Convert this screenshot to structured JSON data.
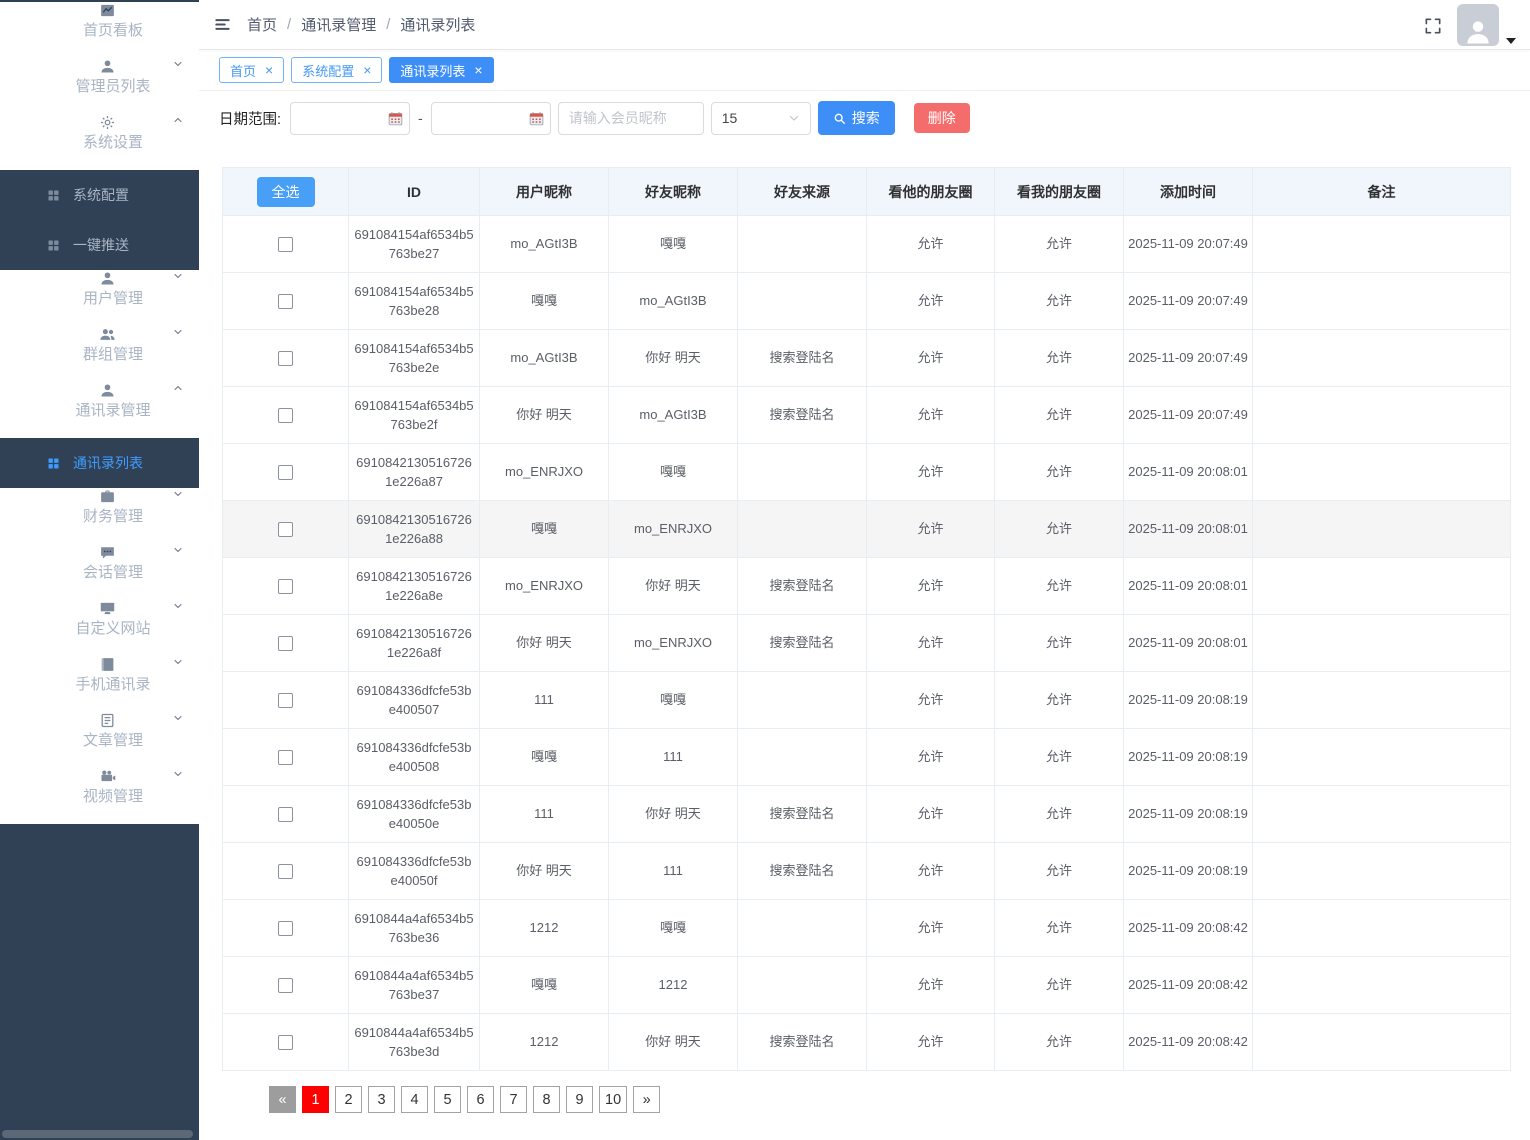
{
  "sidebar": {
    "items": [
      {
        "key": "dashboard",
        "label": "首页看板",
        "icon": "dashboard-icon",
        "type": "main"
      },
      {
        "key": "admin-list",
        "label": "管理员列表",
        "icon": "user-icon",
        "type": "main",
        "chevron": "down"
      },
      {
        "key": "system-settings",
        "label": "系统设置",
        "icon": "gear-icon",
        "type": "main",
        "chevron": "up"
      },
      {
        "key": "system-config",
        "label": "系统配置",
        "icon": "grid-icon",
        "type": "sub"
      },
      {
        "key": "one-key-push",
        "label": "一键推送",
        "icon": "grid-icon",
        "type": "sub"
      },
      {
        "key": "user-mgmt",
        "label": "用户管理",
        "icon": "user-icon",
        "type": "main",
        "chevron": "down"
      },
      {
        "key": "group-mgmt",
        "label": "群组管理",
        "icon": "users-icon",
        "type": "main",
        "chevron": "down"
      },
      {
        "key": "contacts-mgmt",
        "label": "通讯录管理",
        "icon": "user-icon",
        "type": "main",
        "chevron": "up"
      },
      {
        "key": "contacts-list",
        "label": "通讯录列表",
        "icon": "grid-icon",
        "type": "sub",
        "active": true
      },
      {
        "key": "finance-mgmt",
        "label": "财务管理",
        "icon": "briefcase-icon",
        "type": "main",
        "chevron": "down"
      },
      {
        "key": "session-mgmt",
        "label": "会话管理",
        "icon": "chat-icon",
        "type": "main",
        "chevron": "down"
      },
      {
        "key": "custom-website",
        "label": "自定义网站",
        "icon": "monitor-icon",
        "type": "main",
        "chevron": "down"
      },
      {
        "key": "phone-contacts",
        "label": "手机通讯录",
        "icon": "phonebook-icon",
        "type": "main",
        "chevron": "down"
      },
      {
        "key": "article-mgmt",
        "label": "文章管理",
        "icon": "article-icon",
        "type": "main",
        "chevron": "down"
      },
      {
        "key": "video-mgmt",
        "label": "视频管理",
        "icon": "video-icon",
        "type": "main",
        "chevron": "down"
      }
    ]
  },
  "header": {
    "breadcrumb": [
      "首页",
      "通讯录管理",
      "通讯录列表"
    ],
    "separator": "/"
  },
  "tabs": [
    {
      "key": "home",
      "label": "首页",
      "close": "×",
      "active": false
    },
    {
      "key": "system-config",
      "label": "系统配置",
      "close": "×",
      "active": false
    },
    {
      "key": "contacts-list",
      "label": "通讯录列表",
      "close": "×",
      "active": true
    }
  ],
  "filters": {
    "date_range_label": "日期范围:",
    "date_from": "",
    "date_to": "",
    "separator": "-",
    "nickname_placeholder": "请输入会员昵称",
    "page_size": "15",
    "search_label": "搜索",
    "delete_label": "删除"
  },
  "table": {
    "select_all_label": "全选",
    "columns": [
      "ID",
      "用户昵称",
      "好友昵称",
      "好友来源",
      "看他的朋友圈",
      "看我的朋友圈",
      "添加时间",
      "备注"
    ],
    "rows": [
      {
        "id": "691084154af6534b5763be27",
        "user": "mo_AGtI3B",
        "friend": "嘎嘎",
        "source": "",
        "his": "允许",
        "mine": "允许",
        "time": "2025-11-09 20:07:49",
        "note": ""
      },
      {
        "id": "691084154af6534b5763be28",
        "user": "嘎嘎",
        "friend": "mo_AGtI3B",
        "source": "",
        "his": "允许",
        "mine": "允许",
        "time": "2025-11-09 20:07:49",
        "note": ""
      },
      {
        "id": "691084154af6534b5763be2e",
        "user": "mo_AGtI3B",
        "friend": "你好 明天",
        "source": "搜索登陆名",
        "his": "允许",
        "mine": "允许",
        "time": "2025-11-09 20:07:49",
        "note": ""
      },
      {
        "id": "691084154af6534b5763be2f",
        "user": "你好 明天",
        "friend": "mo_AGtI3B",
        "source": "搜索登陆名",
        "his": "允许",
        "mine": "允许",
        "time": "2025-11-09 20:07:49",
        "note": ""
      },
      {
        "id": "69108421305167261e226a87",
        "user": "mo_ENRJXO",
        "friend": "嘎嘎",
        "source": "",
        "his": "允许",
        "mine": "允许",
        "time": "2025-11-09 20:08:01",
        "note": ""
      },
      {
        "id": "69108421305167261e226a88",
        "user": "嘎嘎",
        "friend": "mo_ENRJXO",
        "source": "",
        "his": "允许",
        "mine": "允许",
        "time": "2025-11-09 20:08:01",
        "note": "",
        "highlight": true
      },
      {
        "id": "69108421305167261e226a8e",
        "user": "mo_ENRJXO",
        "friend": "你好 明天",
        "source": "搜索登陆名",
        "his": "允许",
        "mine": "允许",
        "time": "2025-11-09 20:08:01",
        "note": ""
      },
      {
        "id": "69108421305167261e226a8f",
        "user": "你好 明天",
        "friend": "mo_ENRJXO",
        "source": "搜索登陆名",
        "his": "允许",
        "mine": "允许",
        "time": "2025-11-09 20:08:01",
        "note": ""
      },
      {
        "id": "691084336dfcfe53be400507",
        "user": "111",
        "friend": "嘎嘎",
        "source": "",
        "his": "允许",
        "mine": "允许",
        "time": "2025-11-09 20:08:19",
        "note": ""
      },
      {
        "id": "691084336dfcfe53be400508",
        "user": "嘎嘎",
        "friend": "111",
        "source": "",
        "his": "允许",
        "mine": "允许",
        "time": "2025-11-09 20:08:19",
        "note": ""
      },
      {
        "id": "691084336dfcfe53be40050e",
        "user": "111",
        "friend": "你好 明天",
        "source": "搜索登陆名",
        "his": "允许",
        "mine": "允许",
        "time": "2025-11-09 20:08:19",
        "note": ""
      },
      {
        "id": "691084336dfcfe53be40050f",
        "user": "你好 明天",
        "friend": "111",
        "source": "搜索登陆名",
        "his": "允许",
        "mine": "允许",
        "time": "2025-11-09 20:08:19",
        "note": ""
      },
      {
        "id": "6910844a4af6534b5763be36",
        "user": "1212",
        "friend": "嘎嘎",
        "source": "",
        "his": "允许",
        "mine": "允许",
        "time": "2025-11-09 20:08:42",
        "note": ""
      },
      {
        "id": "6910844a4af6534b5763be37",
        "user": "嘎嘎",
        "friend": "1212",
        "source": "",
        "his": "允许",
        "mine": "允许",
        "time": "2025-11-09 20:08:42",
        "note": ""
      },
      {
        "id": "6910844a4af6534b5763be3d",
        "user": "1212",
        "friend": "你好 明天",
        "source": "搜索登陆名",
        "his": "允许",
        "mine": "允许",
        "time": "2025-11-09 20:08:42",
        "note": ""
      }
    ]
  },
  "pagination": {
    "prev": "«",
    "pages": [
      "1",
      "2",
      "3",
      "4",
      "5",
      "6",
      "7",
      "8",
      "9",
      "10"
    ],
    "next": "»",
    "active_page": "1"
  },
  "colors": {
    "sidebar_bg": "#304156",
    "accent_blue": "#3e8ef7",
    "danger_red": "#f56c6c",
    "active_page_red": "#fe0000"
  }
}
